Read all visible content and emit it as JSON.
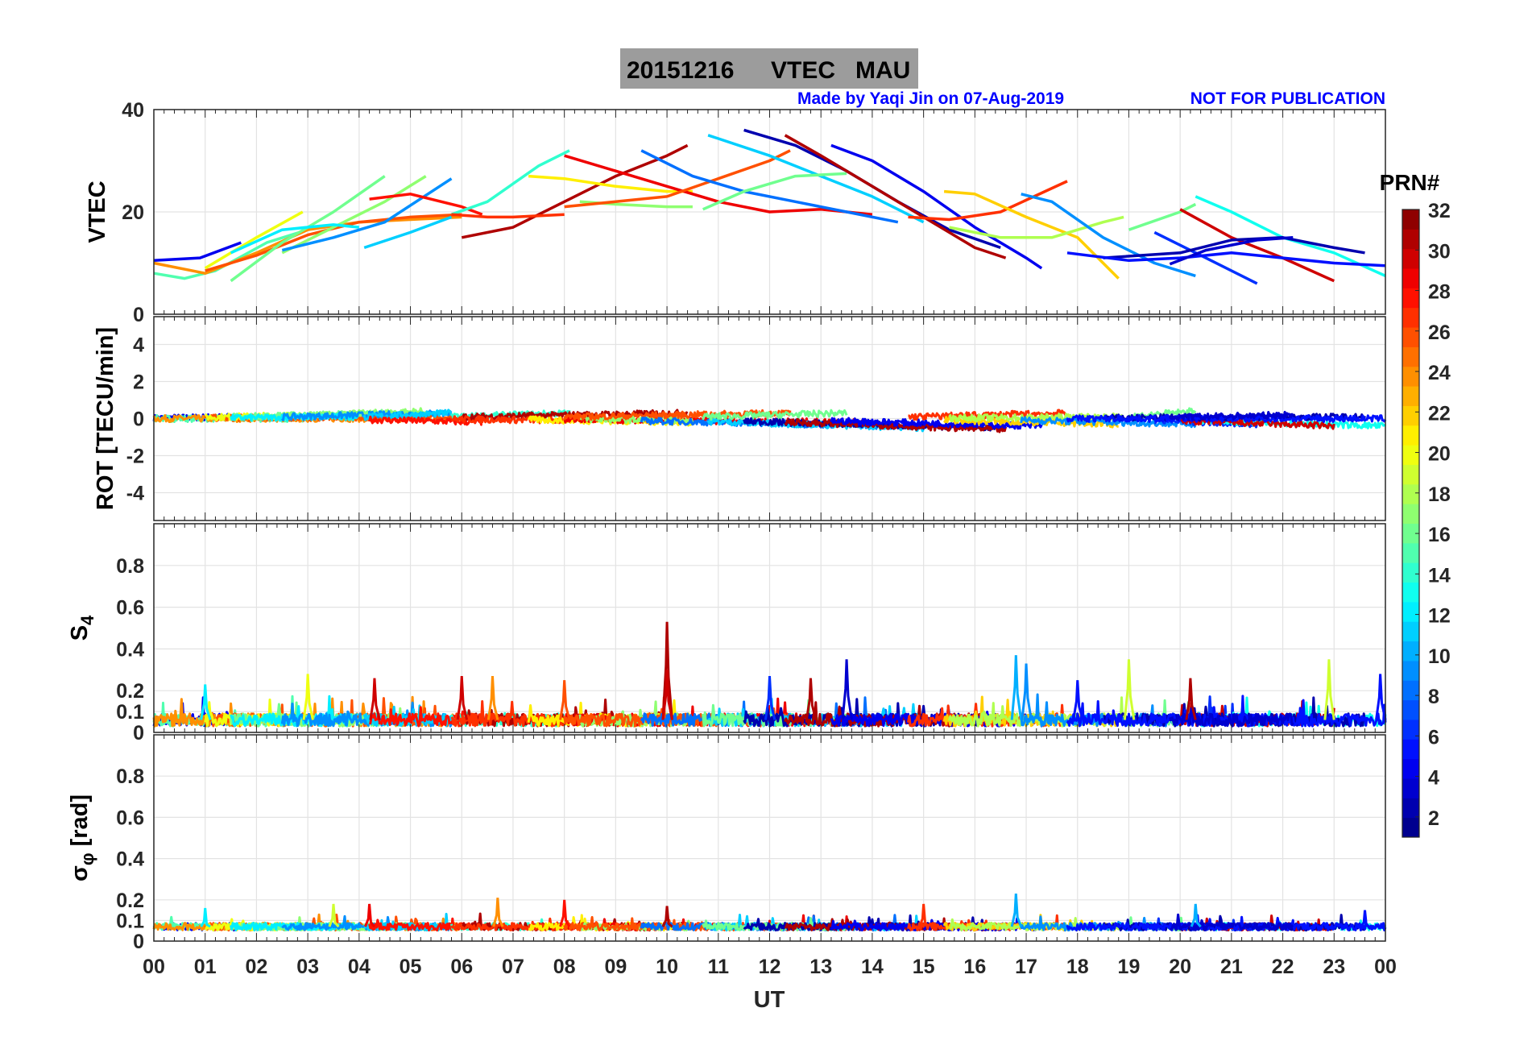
{
  "title": {
    "date": "20151216",
    "quantity": "VTEC",
    "station": "MAU"
  },
  "credit": "Made by Yaqi Jin on 07-Aug-2019",
  "notice": "NOT FOR PUBLICATION",
  "chart_data": {
    "type": "line",
    "xlabel": "UT",
    "x_ticks": [
      "00",
      "01",
      "02",
      "03",
      "04",
      "05",
      "06",
      "07",
      "08",
      "09",
      "10",
      "11",
      "12",
      "13",
      "14",
      "15",
      "16",
      "17",
      "18",
      "19",
      "20",
      "21",
      "22",
      "23",
      "00"
    ],
    "xlim": [
      0,
      24
    ],
    "grid": true,
    "colorbar": {
      "label": "PRN#",
      "range": [
        1,
        32
      ],
      "ticks": [
        "2",
        "4",
        "6",
        "8",
        "10",
        "12",
        "14",
        "16",
        "18",
        "20",
        "22",
        "24",
        "26",
        "28",
        "30",
        "32"
      ],
      "colormap": "jet"
    },
    "panels": [
      {
        "id": "vtec",
        "ylabel": "VTEC",
        "ylim": [
          0,
          40
        ],
        "yticks": [
          "0",
          "20",
          "40"
        ],
        "ytick_values": [
          0,
          20,
          40
        ]
      },
      {
        "id": "rot",
        "ylabel": "ROT [TECU/min]",
        "ylim": [
          -5.5,
          5.5
        ],
        "yticks": [
          "-4",
          "-2",
          "0",
          "2",
          "4"
        ],
        "ytick_values": [
          -4,
          -2,
          0,
          2,
          4
        ]
      },
      {
        "id": "s4",
        "ylabel": "S",
        "ylabel_sub": "4",
        "ylim": [
          0,
          1
        ],
        "yticks": [
          "0",
          "0.1",
          "0.2",
          "0.4",
          "0.6",
          "0.8"
        ],
        "ytick_values": [
          0,
          0.1,
          0.2,
          0.4,
          0.6,
          0.8
        ]
      },
      {
        "id": "sigma",
        "ylabel": "σ",
        "ylabel_sub": "φ",
        "ylabel_unit": "[rad]",
        "ylim": [
          0,
          1
        ],
        "yticks": [
          "0",
          "0.1",
          "0.2",
          "0.4",
          "0.6",
          "0.8"
        ],
        "ytick_values": [
          0,
          0.1,
          0.2,
          0.4,
          0.6,
          0.8
        ]
      }
    ],
    "vtec_tracks": [
      {
        "prn": 4,
        "rot": 0.1,
        "points": [
          [
            0,
            10.5
          ],
          [
            0.9,
            11
          ],
          [
            1.7,
            14
          ]
        ]
      },
      {
        "prn": 15,
        "rot": 0.0,
        "points": [
          [
            0,
            8
          ],
          [
            0.6,
            7
          ],
          [
            1.2,
            8.5
          ],
          [
            2.2,
            14
          ],
          [
            3,
            16.5
          ]
        ]
      },
      {
        "prn": 24,
        "rot": 0.0,
        "points": [
          [
            0,
            10
          ],
          [
            1,
            8
          ],
          [
            2,
            12
          ],
          [
            3,
            16.5
          ],
          [
            4,
            18
          ],
          [
            5,
            18.5
          ],
          [
            6,
            19
          ]
        ]
      },
      {
        "prn": 26,
        "rot": 0.1,
        "points": [
          [
            1,
            8.5
          ],
          [
            2,
            11.5
          ],
          [
            3,
            15.5
          ],
          [
            4,
            18
          ],
          [
            5,
            19
          ],
          [
            6,
            19.5
          ]
        ]
      },
      {
        "prn": 20,
        "rot": 0.2,
        "points": [
          [
            1,
            9
          ],
          [
            2,
            15
          ],
          [
            2.9,
            20
          ]
        ]
      },
      {
        "prn": 16,
        "rot": 0.3,
        "points": [
          [
            1.5,
            6.5
          ],
          [
            2.5,
            14
          ],
          [
            3.5,
            20
          ],
          [
            4.5,
            27
          ]
        ]
      },
      {
        "prn": 17,
        "rot": 0.4,
        "points": [
          [
            2.5,
            12
          ],
          [
            3.5,
            17
          ],
          [
            4.5,
            22
          ],
          [
            5.3,
            27
          ]
        ]
      },
      {
        "prn": 12,
        "rot": 0.1,
        "points": [
          [
            1.5,
            12
          ],
          [
            2.5,
            16.5
          ],
          [
            3.5,
            17.5
          ],
          [
            4,
            17
          ]
        ]
      },
      {
        "prn": 9,
        "rot": 0.3,
        "points": [
          [
            2.5,
            12.5
          ],
          [
            3.5,
            15
          ],
          [
            4.5,
            18
          ],
          [
            5.8,
            26.5
          ]
        ]
      },
      {
        "prn": 11,
        "rot": 0.3,
        "points": [
          [
            4.1,
            13
          ],
          [
            5,
            16
          ],
          [
            5.8,
            19
          ]
        ]
      },
      {
        "prn": 28,
        "rot": -0.2,
        "points": [
          [
            4.2,
            22.5
          ],
          [
            5,
            23.5
          ],
          [
            6,
            21
          ],
          [
            6.4,
            19.5
          ]
        ]
      },
      {
        "prn": 14,
        "rot": 0.3,
        "points": [
          [
            5.8,
            19.5
          ],
          [
            6.5,
            22
          ],
          [
            7.5,
            29
          ],
          [
            8.1,
            32
          ]
        ]
      },
      {
        "prn": 31,
        "rot": 0.3,
        "points": [
          [
            6,
            15
          ],
          [
            7,
            17
          ],
          [
            8,
            22
          ],
          [
            9,
            27
          ],
          [
            10,
            31
          ],
          [
            10.4,
            33
          ]
        ]
      },
      {
        "prn": 27,
        "rot": -0.1,
        "points": [
          [
            5.8,
            19.5
          ],
          [
            6.5,
            19
          ],
          [
            7,
            19
          ],
          [
            8,
            19.5
          ]
        ]
      },
      {
        "prn": 21,
        "rot": -0.2,
        "points": [
          [
            7.3,
            27
          ],
          [
            8,
            26.5
          ],
          [
            9,
            25
          ],
          [
            10,
            24
          ],
          [
            10.5,
            24
          ]
        ]
      },
      {
        "prn": 29,
        "rot": -0.2,
        "points": [
          [
            8,
            31
          ],
          [
            9,
            28
          ],
          [
            10,
            25
          ],
          [
            11,
            22
          ],
          [
            12,
            20
          ],
          [
            13,
            20.5
          ],
          [
            14,
            19.5
          ]
        ]
      },
      {
        "prn": 17,
        "rot": -0.1,
        "points": [
          [
            8.3,
            22
          ],
          [
            9,
            21.5
          ],
          [
            10,
            21
          ],
          [
            10.5,
            21
          ]
        ]
      },
      {
        "prn": 26,
        "rot": 0.3,
        "points": [
          [
            8,
            21
          ],
          [
            9,
            22
          ],
          [
            10,
            23
          ],
          [
            11,
            26.5
          ],
          [
            12,
            30
          ],
          [
            12.4,
            32
          ]
        ]
      },
      {
        "prn": 8,
        "rot": -0.4,
        "points": [
          [
            9.5,
            32
          ],
          [
            10.5,
            27
          ],
          [
            11.5,
            24
          ],
          [
            12.5,
            22
          ],
          [
            13.5,
            20
          ],
          [
            14.5,
            18
          ]
        ]
      },
      {
        "prn": 11,
        "rot": -0.5,
        "points": [
          [
            10.8,
            35
          ],
          [
            12,
            31
          ],
          [
            13,
            27
          ],
          [
            14,
            23
          ],
          [
            15,
            18
          ]
        ]
      },
      {
        "prn": 16,
        "rot": 0.3,
        "points": [
          [
            10.7,
            20.5
          ],
          [
            11.5,
            24
          ],
          [
            12.5,
            27
          ],
          [
            13.5,
            27.5
          ]
        ]
      },
      {
        "prn": 2,
        "rot": -0.5,
        "points": [
          [
            11.5,
            36
          ],
          [
            12.5,
            33
          ],
          [
            13.5,
            28
          ],
          [
            14.5,
            22
          ],
          [
            15.5,
            16.5
          ],
          [
            16.5,
            13
          ]
        ]
      },
      {
        "prn": 31,
        "rot": -0.6,
        "points": [
          [
            12.3,
            35
          ],
          [
            13,
            31
          ],
          [
            14,
            25
          ],
          [
            15,
            19
          ],
          [
            16,
            13
          ],
          [
            16.6,
            11
          ]
        ]
      },
      {
        "prn": 4,
        "rot": -0.4,
        "points": [
          [
            13.2,
            33
          ],
          [
            14,
            30
          ],
          [
            15,
            24
          ],
          [
            16,
            17
          ],
          [
            17,
            11
          ],
          [
            17.3,
            9
          ]
        ]
      },
      {
        "prn": 27,
        "rot": 0.3,
        "points": [
          [
            14.7,
            19
          ],
          [
            15.5,
            18.5
          ],
          [
            16.5,
            20
          ],
          [
            17.8,
            26
          ]
        ]
      },
      {
        "prn": 22,
        "rot": -0.3,
        "points": [
          [
            15.4,
            24
          ],
          [
            16,
            23.5
          ],
          [
            17,
            19
          ],
          [
            18,
            15
          ],
          [
            18.8,
            7
          ]
        ]
      },
      {
        "prn": 18,
        "rot": 0.1,
        "points": [
          [
            15.5,
            17
          ],
          [
            16.5,
            15
          ],
          [
            17.5,
            15
          ],
          [
            18.5,
            18
          ],
          [
            18.9,
            19
          ]
        ]
      },
      {
        "prn": 9,
        "rot": -0.3,
        "points": [
          [
            16.9,
            23.5
          ],
          [
            17.5,
            22
          ],
          [
            18.5,
            15
          ],
          [
            19.5,
            10
          ],
          [
            20.3,
            7.5
          ]
        ]
      },
      {
        "prn": 16,
        "rot": 0.4,
        "points": [
          [
            19,
            16.5
          ],
          [
            20,
            20
          ],
          [
            20.3,
            21.5
          ]
        ]
      },
      {
        "prn": 6,
        "rot": -0.3,
        "points": [
          [
            19.5,
            16
          ],
          [
            20.5,
            11
          ],
          [
            21.5,
            6
          ]
        ]
      },
      {
        "prn": 13,
        "rot": -0.4,
        "points": [
          [
            20.3,
            23
          ],
          [
            21,
            20
          ],
          [
            22,
            15
          ],
          [
            23,
            12
          ],
          [
            24,
            7.5
          ]
        ]
      },
      {
        "prn": 30,
        "rot": -0.4,
        "points": [
          [
            20,
            20.5
          ],
          [
            21,
            15
          ],
          [
            22,
            11
          ],
          [
            23,
            6.5
          ]
        ]
      },
      {
        "prn": 2,
        "rot": 0.1,
        "points": [
          [
            18.5,
            11
          ],
          [
            20,
            12
          ],
          [
            21,
            14.5
          ],
          [
            22,
            15
          ],
          [
            23,
            13
          ],
          [
            23.6,
            12
          ]
        ]
      },
      {
        "prn": 5,
        "rot": 0.0,
        "points": [
          [
            17.8,
            12
          ],
          [
            19,
            10.5
          ],
          [
            20,
            11
          ],
          [
            21,
            12
          ],
          [
            22,
            11
          ],
          [
            23,
            10
          ],
          [
            24,
            9.5
          ]
        ]
      },
      {
        "prn": 3,
        "rot": 0.2,
        "points": [
          [
            19.8,
            9.8
          ],
          [
            20.5,
            12.5
          ],
          [
            21.5,
            14.5
          ],
          [
            22.2,
            15
          ]
        ]
      }
    ],
    "s4_spikes": [
      [
        10,
        0.53,
        31
      ],
      [
        10,
        0.3,
        30
      ],
      [
        13.5,
        0.35,
        3
      ],
      [
        16.8,
        0.37,
        10
      ],
      [
        17,
        0.33,
        9
      ],
      [
        19,
        0.35,
        19
      ],
      [
        4.3,
        0.26,
        30
      ],
      [
        6,
        0.27,
        30
      ],
      [
        6.6,
        0.27,
        24
      ],
      [
        3,
        0.28,
        20
      ],
      [
        23.9,
        0.28,
        5
      ],
      [
        22.9,
        0.35,
        19
      ],
      [
        12,
        0.27,
        6
      ],
      [
        12.8,
        0.26,
        31
      ],
      [
        1,
        0.23,
        12
      ],
      [
        8,
        0.25,
        26
      ],
      [
        20.2,
        0.26,
        31
      ],
      [
        18,
        0.25,
        5
      ]
    ],
    "sigma_spikes": [
      [
        4.2,
        0.18,
        29
      ],
      [
        6.7,
        0.21,
        24
      ],
      [
        8,
        0.2,
        28
      ],
      [
        10,
        0.17,
        31
      ],
      [
        16.8,
        0.23,
        10
      ],
      [
        20.3,
        0.18,
        10
      ],
      [
        15,
        0.18,
        27
      ],
      [
        3.5,
        0.18,
        19
      ],
      [
        1,
        0.16,
        12
      ],
      [
        23.6,
        0.15,
        5
      ]
    ]
  }
}
